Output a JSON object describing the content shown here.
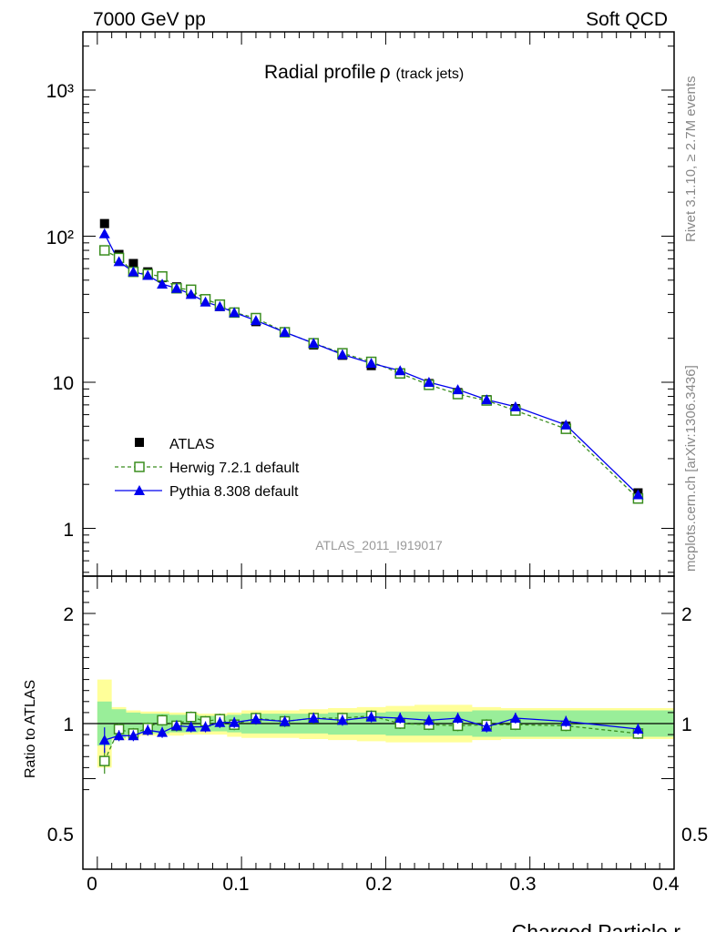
{
  "header": {
    "left_text": "7000 GeV pp",
    "right_text": "Soft QCD"
  },
  "side_text": {
    "rivet": "Rivet 3.1.10, ≥ 2.7M events",
    "mcplots": "mcplots.cern.ch [arXiv:1306.3436]"
  },
  "chart_data": [
    {
      "type": "scatter",
      "title": "Radial profile",
      "title_symbol": "ρ",
      "title_suffix": "(track jets)",
      "watermark": "ATLAS_2011_I919017",
      "yscale": "log",
      "xlim": [
        -0.01,
        0.4
      ],
      "ylim": [
        0.5,
        2500
      ],
      "ytick_labels": [
        "1",
        "10",
        "10²",
        "10³"
      ],
      "legend_position": "left-lower",
      "x": [
        0.005,
        0.015,
        0.025,
        0.035,
        0.045,
        0.055,
        0.065,
        0.075,
        0.085,
        0.095,
        0.11,
        0.13,
        0.15,
        0.17,
        0.19,
        0.21,
        0.23,
        0.25,
        0.27,
        0.29,
        0.325,
        0.375
      ],
      "series": [
        {
          "name": "ATLAS",
          "marker": "square-filled",
          "color": "#000000",
          "values": [
            122,
            75,
            65,
            57,
            52,
            45,
            41,
            37,
            33,
            30,
            26,
            22,
            18,
            15.3,
            13,
            11.5,
            9.8,
            8.5,
            7.6,
            6.6,
            5.0,
            1.75
          ]
        },
        {
          "name": "Herwig 7.2.1 default",
          "marker": "square-open",
          "line": "dashed",
          "color": "#3a8d1f",
          "values": [
            80,
            71,
            57,
            55,
            53,
            44,
            43,
            37,
            34,
            30,
            27.5,
            22,
            18.5,
            15.8,
            13.8,
            11.5,
            9.6,
            8.3,
            7.5,
            6.4,
            4.8,
            1.6
          ]
        },
        {
          "name": "Pythia 8.308 default",
          "marker": "triangle-filled",
          "line": "solid",
          "color": "#0000ee",
          "values": [
            104,
            67,
            57,
            54,
            47,
            44,
            40,
            35.5,
            33,
            30,
            26.5,
            22,
            18.5,
            15.5,
            13.5,
            12,
            10,
            8.9,
            7.6,
            6.8,
            5.1,
            1.7
          ]
        }
      ]
    },
    {
      "type": "scatter",
      "ylabel": "Ratio to ATLAS",
      "xlabel": "Charged Particle r",
      "xlim": [
        -0.01,
        0.4
      ],
      "ylim": [
        0.35,
        2.3
      ],
      "ytick_labels": [
        "0.5",
        "1",
        "2"
      ],
      "xtick_labels": [
        "0",
        "0.1",
        "0.2",
        "0.3",
        "0.4"
      ],
      "x": [
        0.005,
        0.015,
        0.025,
        0.035,
        0.045,
        0.055,
        0.065,
        0.075,
        0.085,
        0.095,
        0.11,
        0.13,
        0.15,
        0.17,
        0.19,
        0.21,
        0.23,
        0.25,
        0.27,
        0.29,
        0.325,
        0.375
      ],
      "bands": {
        "edges": [
          0,
          0.01,
          0.02,
          0.03,
          0.04,
          0.05,
          0.06,
          0.07,
          0.08,
          0.09,
          0.1,
          0.12,
          0.14,
          0.16,
          0.18,
          0.2,
          0.22,
          0.24,
          0.26,
          0.28,
          0.3,
          0.35,
          0.4
        ],
        "green_low": [
          0.8,
          0.87,
          0.9,
          0.91,
          0.91,
          0.92,
          0.92,
          0.93,
          0.93,
          0.92,
          0.91,
          0.91,
          0.91,
          0.9,
          0.9,
          0.89,
          0.89,
          0.89,
          0.88,
          0.88,
          0.88,
          0.88
        ],
        "green_high": [
          1.2,
          1.13,
          1.1,
          1.09,
          1.09,
          1.08,
          1.08,
          1.07,
          1.07,
          1.08,
          1.09,
          1.09,
          1.09,
          1.1,
          1.1,
          1.11,
          1.11,
          1.11,
          1.12,
          1.12,
          1.12,
          1.12
        ],
        "yellow_low": [
          0.6,
          0.85,
          0.88,
          0.89,
          0.89,
          0.89,
          0.9,
          0.9,
          0.9,
          0.88,
          0.87,
          0.87,
          0.86,
          0.85,
          0.84,
          0.83,
          0.83,
          0.83,
          0.85,
          0.86,
          0.86,
          0.86
        ],
        "yellow_high": [
          1.4,
          1.15,
          1.12,
          1.11,
          1.11,
          1.1,
          1.1,
          1.09,
          1.09,
          1.1,
          1.12,
          1.12,
          1.13,
          1.14,
          1.15,
          1.16,
          1.17,
          1.17,
          1.15,
          1.14,
          1.14,
          1.14
        ]
      },
      "series": [
        {
          "name": "Herwig 7.2.1 default",
          "color": "#3a8d1f",
          "values": [
            0.66,
            0.95,
            0.91,
            0.96,
            1.03,
            0.98,
            1.06,
            1.02,
            1.04,
            0.99,
            1.05,
            1.02,
            1.05,
            1.05,
            1.07,
            1.0,
            0.99,
            0.98,
            0.99,
            0.99,
            0.98,
            0.91
          ]
        },
        {
          "name": "Pythia 8.308 default",
          "color": "#0000ee",
          "values": [
            0.85,
            0.89,
            0.89,
            0.94,
            0.92,
            0.98,
            0.97,
            0.97,
            1.01,
            1.01,
            1.04,
            1.02,
            1.05,
            1.03,
            1.06,
            1.05,
            1.03,
            1.05,
            0.97,
            1.05,
            1.02,
            0.95
          ]
        }
      ]
    }
  ]
}
